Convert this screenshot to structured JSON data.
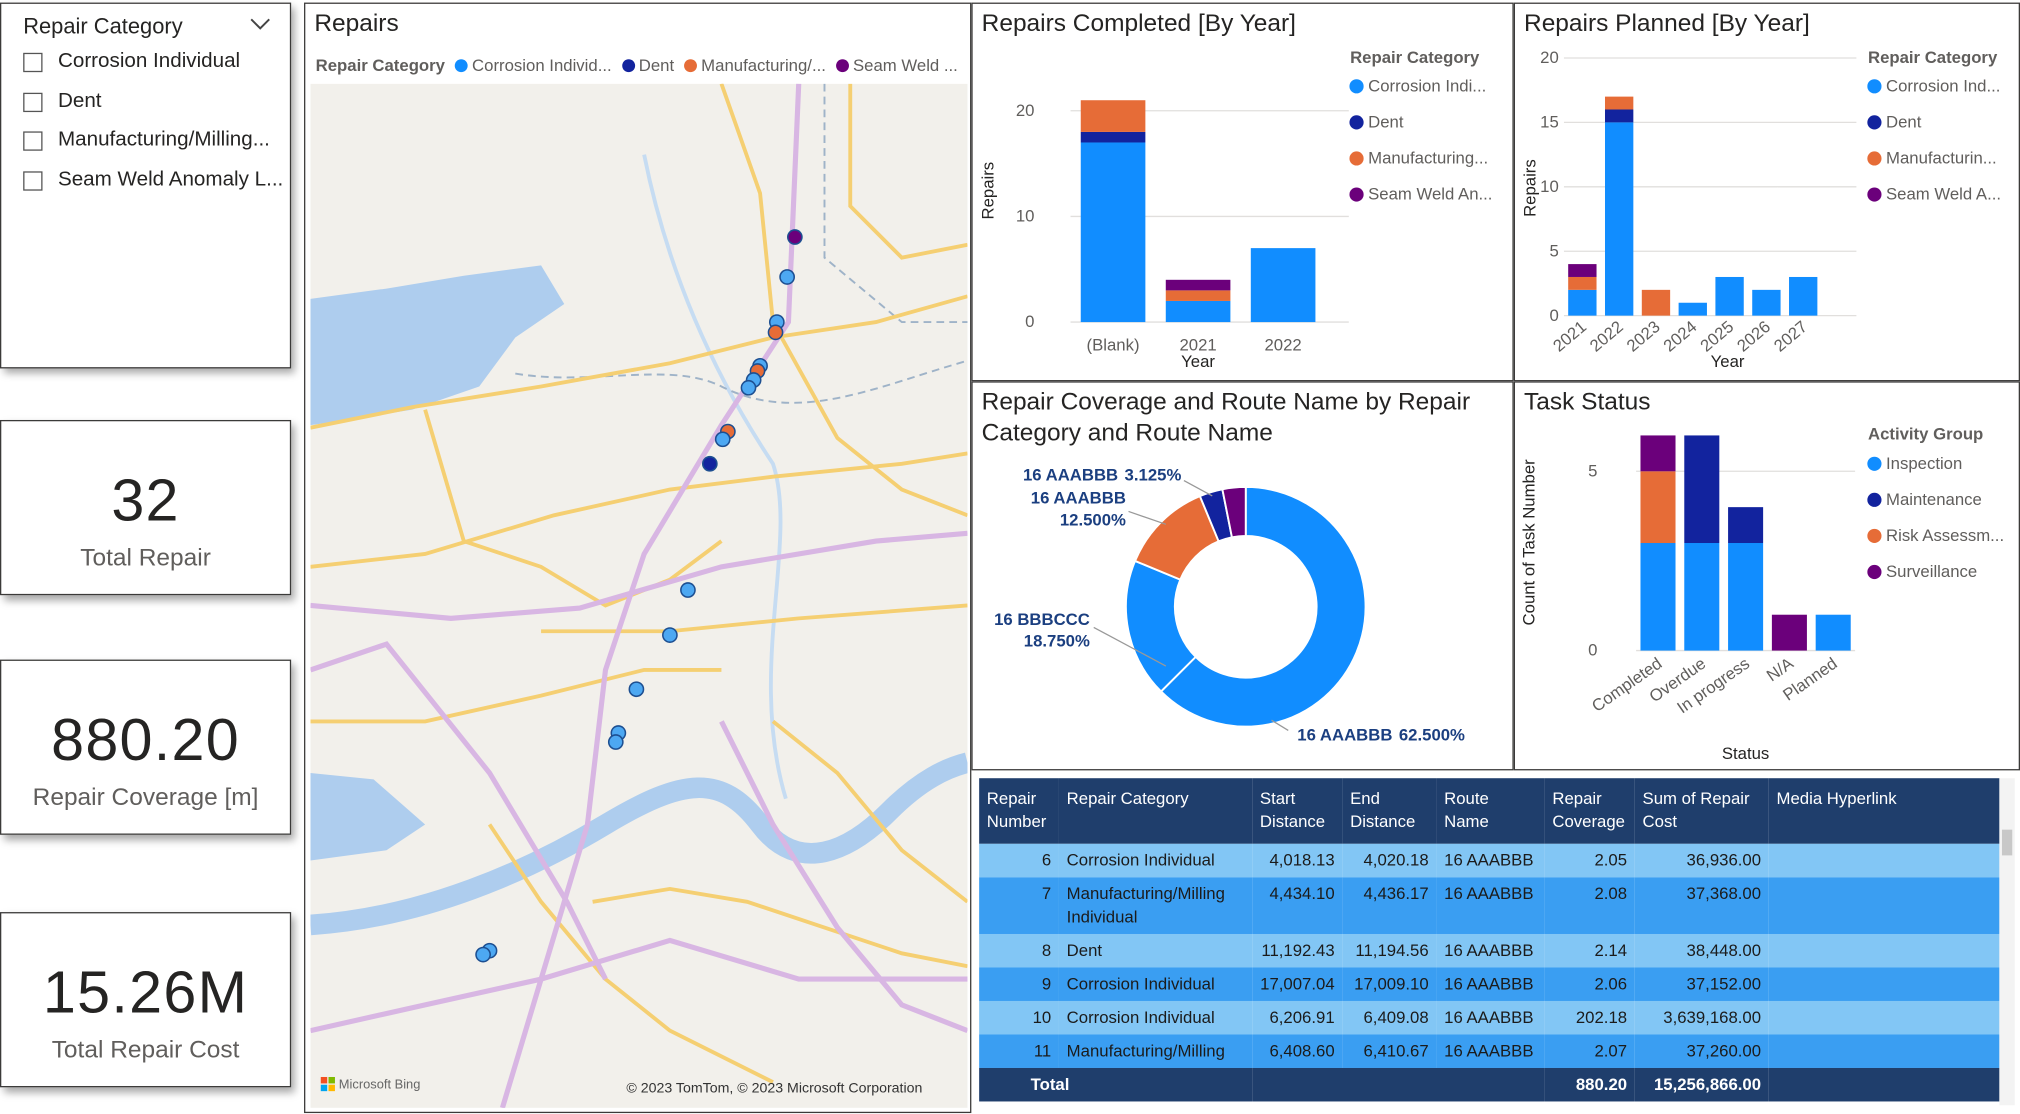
{
  "slicer": {
    "title": "Repair Category",
    "items": [
      "Corrosion Individual",
      "Dent",
      "Manufacturing/Milling...",
      "Seam Weld Anomaly L..."
    ]
  },
  "cards": [
    {
      "value": "32",
      "label": "Total Repair"
    },
    {
      "value": "880.20",
      "label": "Repair Coverage [m]"
    },
    {
      "value": "15.26M",
      "label": "Total Repair Cost"
    }
  ],
  "map": {
    "title": "Repairs",
    "legend_title": "Repair Category",
    "legend": [
      {
        "name": "Corrosion Individ...",
        "color": "#118DFF"
      },
      {
        "name": "Dent",
        "color": "#12239E"
      },
      {
        "name": "Manufacturing/...",
        "color": "#E66C37"
      },
      {
        "name": "Seam Weld ...",
        "color": "#6B007B"
      }
    ],
    "attribution": "© 2023 TomTom, © 2023 Microsoft Corporation",
    "logo": "Microsoft Bing"
  },
  "chart_data": [
    {
      "type": "bar",
      "stacked": true,
      "title": "Repairs Completed [By Year]",
      "x_label": "Year",
      "y_label": "Repairs",
      "legend_title": "Repair Category",
      "categories": [
        "(Blank)",
        "2021",
        "2022"
      ],
      "series": [
        {
          "name": "Corrosion Indi...",
          "color": "#118DFF",
          "values": [
            17,
            2,
            7
          ]
        },
        {
          "name": "Dent",
          "color": "#12239E",
          "values": [
            1,
            0,
            0
          ]
        },
        {
          "name": "Manufacturing...",
          "color": "#E66C37",
          "values": [
            3,
            1,
            0
          ]
        },
        {
          "name": "Seam Weld An...",
          "color": "#6B007B",
          "values": [
            0,
            1,
            0
          ]
        }
      ],
      "ylim": [
        0,
        25
      ],
      "yticks": [
        0,
        10,
        20
      ],
      "grid": true
    },
    {
      "type": "bar",
      "stacked": true,
      "title": "Repairs Planned [By Year]",
      "x_label": "Year",
      "y_label": "Repairs",
      "legend_title": "Repair Category",
      "categories": [
        "2021",
        "2022",
        "2023",
        "2024",
        "2025",
        "2026",
        "2027"
      ],
      "series": [
        {
          "name": "Corrosion Ind...",
          "color": "#118DFF",
          "values": [
            2,
            15,
            0,
            1,
            3,
            2,
            3
          ]
        },
        {
          "name": "Dent",
          "color": "#12239E",
          "values": [
            0,
            1,
            0,
            0,
            0,
            0,
            0
          ]
        },
        {
          "name": "Manufacturin...",
          "color": "#E66C37",
          "values": [
            1,
            1,
            2,
            0,
            0,
            0,
            0
          ]
        },
        {
          "name": "Seam Weld A...",
          "color": "#6B007B",
          "values": [
            1,
            0,
            0,
            0,
            0,
            0,
            0
          ]
        }
      ],
      "ylim": [
        0,
        20
      ],
      "yticks": [
        0,
        5,
        10,
        15,
        20
      ],
      "grid": true
    },
    {
      "type": "donut",
      "title": "Repair Coverage and Route Name by Repair Category and Route Name",
      "categories": [
        "16 AAABBB",
        "16 BBBCCC",
        "16 AAABBB",
        "16 AAABBB",
        null
      ],
      "values": [
        62.5,
        18.75,
        12.5,
        3.125,
        3.125
      ],
      "value_labels": [
        "62.500%",
        "18.750%",
        "12.500%",
        "3.125%",
        null
      ],
      "colors": [
        "#118DFF",
        "#118DFF",
        "#E66C37",
        "#12239E",
        "#6B007B"
      ]
    },
    {
      "type": "bar",
      "stacked": true,
      "title": "Task Status",
      "x_label": "Status",
      "y_label": "Count of Task Number",
      "legend_title": "Activity Group",
      "categories": [
        "Completed",
        "Overdue",
        "In progress",
        "N/A",
        "Planned"
      ],
      "series": [
        {
          "name": "Inspection",
          "color": "#118DFF",
          "values": [
            3,
            3,
            3,
            0,
            1
          ]
        },
        {
          "name": "Maintenance",
          "color": "#12239E",
          "values": [
            0,
            3,
            1,
            0,
            0
          ]
        },
        {
          "name": "Risk Assessm...",
          "color": "#E66C37",
          "values": [
            2,
            0,
            0,
            0,
            0
          ]
        },
        {
          "name": "Surveillance",
          "color": "#6B007B",
          "values": [
            1,
            0,
            0,
            1,
            0
          ]
        }
      ],
      "ylim": [
        0,
        6
      ],
      "yticks": [
        0,
        5
      ],
      "grid": true
    }
  ],
  "table": {
    "columns": [
      "Repair Number",
      "Repair Category",
      "Start Distance",
      "End Distance",
      "Route Name",
      "Repair Coverage",
      "Sum of Repair Cost",
      "Media Hyperlink"
    ],
    "rows": [
      [
        "6",
        "Corrosion Individual",
        "4,018.13",
        "4,020.18",
        "16 AAABBB",
        "2.05",
        "36,936.00"
      ],
      [
        "7",
        "Manufacturing/Milling Individual",
        "4,434.10",
        "4,436.17",
        "16 AAABBB",
        "2.08",
        "37,368.00"
      ],
      [
        "8",
        "Dent",
        "11,192.43",
        "11,194.56",
        "16 AAABBB",
        "2.14",
        "38,448.00"
      ],
      [
        "9",
        "Corrosion Individual",
        "17,007.04",
        "17,009.10",
        "16 AAABBB",
        "2.06",
        "37,152.00"
      ],
      [
        "10",
        "Corrosion Individual",
        "6,206.91",
        "6,409.08",
        "16 AAABBB",
        "202.18",
        "3,639,168.00"
      ],
      [
        "11",
        "Manufacturing/Milling",
        "6,408.60",
        "6,410.67",
        "16 AAABBB",
        "2.07",
        "37,260.00"
      ]
    ],
    "total": {
      "label": "Total",
      "coverage": "880.20",
      "cost": "15,256,866.00"
    }
  }
}
